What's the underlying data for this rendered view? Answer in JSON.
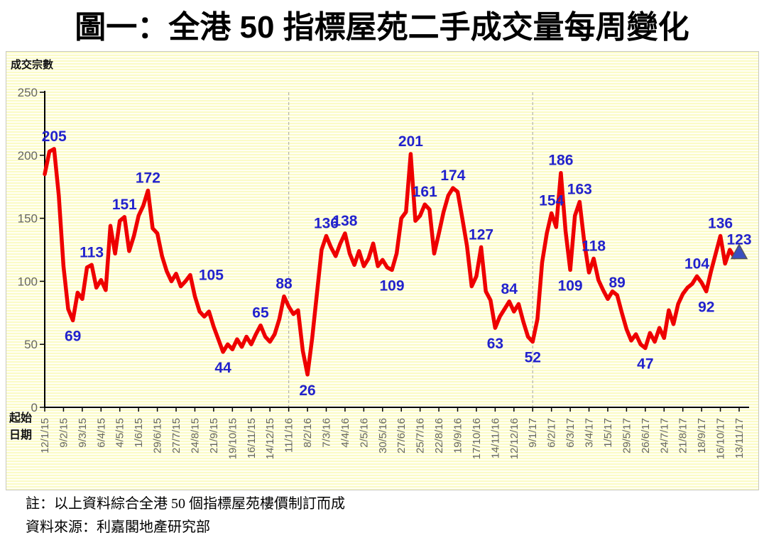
{
  "title": "圖一：全港 50 指標屋苑二手成交量每周變化",
  "axis_captions": {
    "y_title": "成交宗數",
    "x_title_line1": "起始",
    "x_title_line2": "日期"
  },
  "notes": [
    "註：以上資料綜合全港 50 個指標屋苑樓價制訂而成",
    "資料來源：利嘉閣地產研究部"
  ],
  "colors": {
    "line": "#ee0000",
    "point_label": "#2222cc",
    "axis": "#000000",
    "axis_text": "#66665e",
    "divider": "#b3b3a8",
    "marker_fill": "#3a4fc0",
    "marker_stroke": "#55555f"
  },
  "chart_data": {
    "type": "line",
    "title": "圖一：全港 50 指標屋苑二手成交量每周變化",
    "ylabel": "成交宗數",
    "xlabel": "起始日期",
    "ylim": [
      0,
      250
    ],
    "yticks": [
      0,
      50,
      100,
      150,
      200,
      250
    ],
    "grid": "off",
    "legend": "none",
    "x_tick_interval_weeks": 4,
    "x_tick_labels": [
      "12/1/15",
      "9/2/15",
      "9/3/15",
      "6/4/15",
      "4/5/15",
      "1/6/15",
      "29/6/15",
      "27/7/15",
      "24/8/15",
      "21/9/15",
      "19/10/15",
      "16/11/15",
      "14/12/15",
      "11/1/16",
      "8/2/16",
      "7/3/16",
      "4/4/16",
      "2/5/16",
      "30/5/16",
      "27/6/16",
      "25/7/16",
      "22/8/16",
      "19/9/16",
      "17/10/16",
      "14/11/16",
      "12/12/16",
      "9/1/17",
      "6/2/17",
      "6/3/17",
      "3/4/17",
      "1/5/17",
      "29/5/17",
      "26/6/17",
      "24/7/17",
      "21/8/17",
      "18/9/17",
      "16/10/17",
      "13/11/17"
    ],
    "year_divider_weeks": [
      52,
      104
    ],
    "series": [
      {
        "name": "成交宗數",
        "color": "#ee0000",
        "values": [
          185,
          203,
          205,
          168,
          112,
          78,
          69,
          91,
          86,
          111,
          113,
          95,
          101,
          93,
          144,
          122,
          148,
          151,
          124,
          136,
          152,
          160,
          172,
          142,
          138,
          120,
          108,
          100,
          106,
          96,
          100,
          105,
          88,
          76,
          72,
          76,
          64,
          54,
          44,
          50,
          46,
          54,
          48,
          56,
          50,
          58,
          65,
          56,
          52,
          58,
          70,
          88,
          80,
          74,
          77,
          45,
          26,
          55,
          90,
          125,
          136,
          127,
          120,
          130,
          138,
          122,
          113,
          124,
          112,
          118,
          130,
          112,
          117,
          111,
          109,
          122,
          150,
          155,
          201,
          148,
          152,
          161,
          157,
          122,
          138,
          155,
          168,
          174,
          171,
          150,
          128,
          96,
          104,
          127,
          92,
          85,
          63,
          72,
          78,
          84,
          76,
          82,
          68,
          56,
          52,
          70,
          115,
          138,
          154,
          143,
          186,
          140,
          109,
          152,
          163,
          131,
          107,
          118,
          101,
          93,
          86,
          92,
          89,
          75,
          62,
          53,
          58,
          50,
          47,
          59,
          52,
          63,
          55,
          77,
          66,
          82,
          90,
          95,
          98,
          104,
          99,
          92,
          108,
          122,
          136,
          114,
          125,
          119,
          123
        ]
      }
    ],
    "point_labels": [
      {
        "text": "205",
        "week": 2,
        "pos": "above"
      },
      {
        "text": "69",
        "week": 6,
        "pos": "below"
      },
      {
        "text": "113",
        "week": 10,
        "pos": "above"
      },
      {
        "text": "151",
        "week": 17,
        "pos": "above"
      },
      {
        "text": "172",
        "week": 22,
        "pos": "above"
      },
      {
        "text": "105",
        "week": 31,
        "pos": "right"
      },
      {
        "text": "44",
        "week": 38,
        "pos": "below"
      },
      {
        "text": "65",
        "week": 46,
        "pos": "above"
      },
      {
        "text": "88",
        "week": 51,
        "pos": "above"
      },
      {
        "text": "26",
        "week": 56,
        "pos": "below"
      },
      {
        "text": "136",
        "week": 60,
        "pos": "above"
      },
      {
        "text": "138",
        "week": 64,
        "pos": "above"
      },
      {
        "text": "109",
        "week": 74,
        "pos": "below"
      },
      {
        "text": "201",
        "week": 78,
        "pos": "above"
      },
      {
        "text": "161",
        "week": 81,
        "pos": "above"
      },
      {
        "text": "174",
        "week": 87,
        "pos": "above"
      },
      {
        "text": "127",
        "week": 93,
        "pos": "above"
      },
      {
        "text": "63",
        "week": 96,
        "pos": "below"
      },
      {
        "text": "84",
        "week": 99,
        "pos": "above"
      },
      {
        "text": "52",
        "week": 104,
        "pos": "below"
      },
      {
        "text": "154",
        "week": 108,
        "pos": "above"
      },
      {
        "text": "186",
        "week": 110,
        "pos": "above"
      },
      {
        "text": "109",
        "week": 112,
        "pos": "below"
      },
      {
        "text": "163",
        "week": 114,
        "pos": "above"
      },
      {
        "text": "118",
        "week": 117,
        "pos": "above"
      },
      {
        "text": "89",
        "week": 122,
        "pos": "above"
      },
      {
        "text": "47",
        "week": 128,
        "pos": "below"
      },
      {
        "text": "104",
        "week": 139,
        "pos": "above"
      },
      {
        "text": "92",
        "week": 141,
        "pos": "below"
      },
      {
        "text": "136",
        "week": 144,
        "pos": "above"
      },
      {
        "text": "123",
        "week": 148,
        "pos": "above"
      }
    ],
    "end_marker": {
      "shape": "triangle-up",
      "week": 148,
      "value": 123
    }
  }
}
